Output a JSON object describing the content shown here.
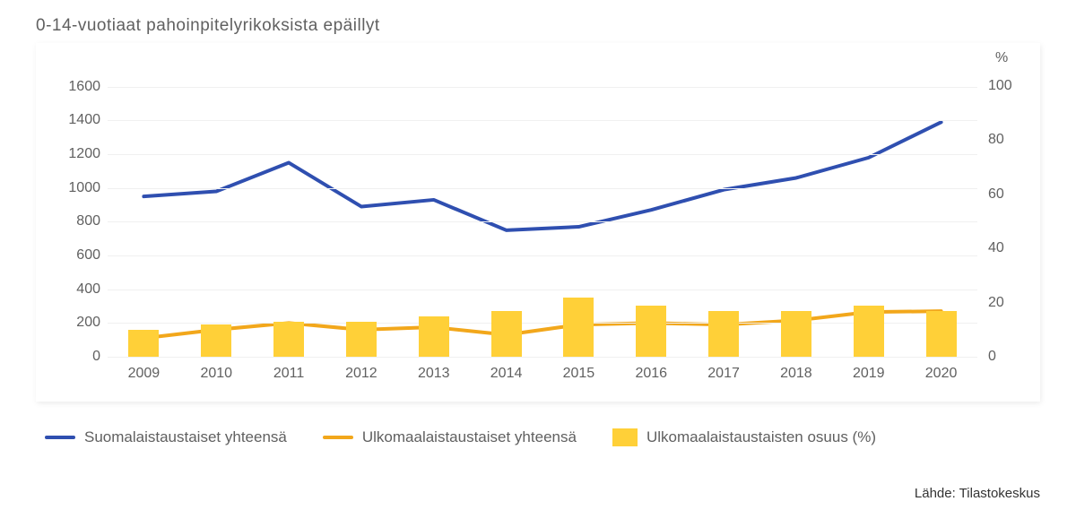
{
  "chart": {
    "title": "0-14-vuotiaat pahoinpitelyrikoksista epäillyt",
    "source": "Lähde: Tilastokeskus",
    "bg": "#ffffff",
    "grid_color": "#f0f0f0",
    "text_color": "#606060",
    "years": [
      "2009",
      "2010",
      "2011",
      "2012",
      "2013",
      "2014",
      "2015",
      "2016",
      "2017",
      "2018",
      "2019",
      "2020"
    ],
    "left_axis": {
      "min": 0,
      "max": 1700,
      "ticks": [
        0,
        200,
        400,
        600,
        800,
        1000,
        1200,
        1400,
        1600
      ]
    },
    "right_axis": {
      "title": "%",
      "min": 0,
      "max": 106,
      "ticks": [
        0,
        20,
        40,
        60,
        80,
        100
      ]
    },
    "series": {
      "suomi": {
        "label": "Suomalaistaustaiset yhteensä",
        "color": "#2f4fb0",
        "width": 4,
        "values": [
          950,
          980,
          1150,
          890,
          930,
          750,
          770,
          870,
          990,
          1060,
          1180,
          1390
        ]
      },
      "ulkom": {
        "label": "Ulkomaalaistaustaiset yhteensä",
        "color": "#f2a71b",
        "width": 4,
        "values": [
          110,
          160,
          200,
          160,
          175,
          130,
          190,
          200,
          190,
          215,
          265,
          270
        ]
      },
      "osuus": {
        "label": "Ulkomaalaistaustaisten osuus (%)",
        "color": "#ffd038",
        "bar_width_frac": 0.42,
        "values": [
          10,
          12,
          13,
          13,
          15,
          17,
          22,
          19,
          17,
          17,
          19,
          17
        ]
      }
    }
  }
}
